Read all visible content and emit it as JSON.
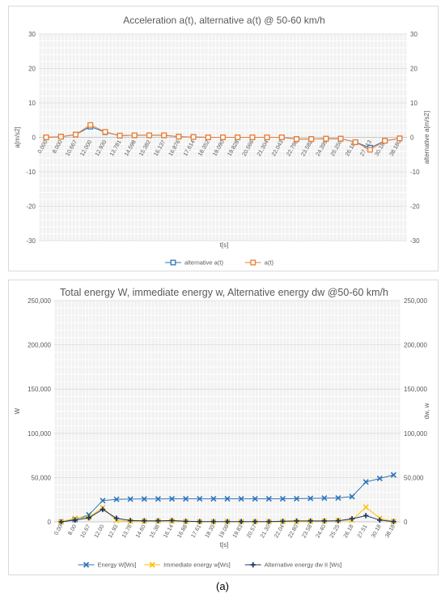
{
  "figure": {
    "caption": "(a)"
  },
  "chart_data": [
    {
      "type": "line",
      "title": "Acceleration a(t), alternative  a(t) @ 50-60 km/h",
      "xlabel": "t[s]",
      "ylabel": "a[m/s2]",
      "y2label": "alternative a[m/s2]",
      "ylim": [
        -30,
        30
      ],
      "y2lim": [
        -30,
        30
      ],
      "yticks": [
        -30,
        -20,
        -10,
        0,
        10,
        20,
        30
      ],
      "grid": true,
      "legend_position": "bottom",
      "categories": [
        "0.000",
        "8.000",
        "10.667",
        "12.000",
        "12.930",
        "13.781",
        "14.598",
        "15.382",
        "16.137",
        "16.876",
        "17.614",
        "18.352",
        "19.090",
        "19.828",
        "20.566",
        "21.304",
        "22.043",
        "22.798",
        "23.582",
        "24.399",
        "25.250",
        "26.180",
        "27.513",
        "30.180",
        "38.180"
      ],
      "series": [
        {
          "name": "alternative a(t)",
          "color": "#2e75b6",
          "marker": "square",
          "values": [
            0,
            0.2,
            0.8,
            3.1,
            1.5,
            0.5,
            0.6,
            0.6,
            0.6,
            0.2,
            0.1,
            0,
            0,
            0,
            0,
            0,
            0,
            -0.5,
            -0.5,
            -0.4,
            -0.4,
            -1.4,
            -3.0,
            -1.0,
            -0.3
          ]
        },
        {
          "name": "a(t)",
          "color": "#ed7d31",
          "marker": "square",
          "values": [
            0,
            0.2,
            0.8,
            3.6,
            1.6,
            0.5,
            0.6,
            0.6,
            0.6,
            0.2,
            0.1,
            0,
            0,
            0,
            0,
            0,
            0,
            -0.5,
            -0.5,
            -0.4,
            -0.4,
            -1.4,
            -3.6,
            -1.0,
            -0.3
          ]
        }
      ]
    },
    {
      "type": "line",
      "title": "Total energy W, immediate energy w, Alternative energy dw @50-60 km/h",
      "xlabel": "t[s]",
      "ylabel": "W",
      "y2label": "dw, w",
      "ylim": [
        0,
        250000
      ],
      "y2lim": [
        0,
        250000
      ],
      "yticks": [
        "0",
        "50,000",
        "100,000",
        "150,000",
        "200,000",
        "250,000"
      ],
      "grid": true,
      "legend_position": "bottom",
      "categories": [
        "0.00",
        "8.00",
        "10.67",
        "12.00",
        "12.93",
        "13.78",
        "14.60",
        "15.38",
        "16.14",
        "16.88",
        "17.61",
        "18.35",
        "19.09",
        "19.83",
        "20.57",
        "21.30",
        "22.04",
        "22.80",
        "23.58",
        "24.40",
        "25.25",
        "26.18",
        "27.51",
        "30.18",
        "38.18"
      ],
      "series": [
        {
          "name": "Energy W[Ws]",
          "color": "#2e75b6",
          "marker": "x",
          "values": [
            0,
            2500,
            8000,
            24000,
            25500,
            25700,
            25800,
            25900,
            26000,
            26000,
            26000,
            26000,
            26000,
            26000,
            26000,
            26000,
            26000,
            26200,
            26500,
            26800,
            27000,
            28500,
            45000,
            49000,
            53000
          ]
        },
        {
          "name": "Immediate energy w[Ws]",
          "color": "#ffc000",
          "marker": "x",
          "values": [
            0,
            4000,
            5000,
            16000,
            1500,
            500,
            800,
            800,
            800,
            300,
            200,
            100,
            100,
            100,
            100,
            100,
            100,
            100,
            500,
            800,
            1500,
            2000,
            16500,
            4000,
            400
          ]
        },
        {
          "name": "Alternative energy dw II [Ws]",
          "color": "#1f3864",
          "marker": "plus",
          "values": [
            0,
            2000,
            4500,
            14000,
            4000,
            1500,
            1200,
            1200,
            1500,
            600,
            300,
            300,
            300,
            300,
            300,
            300,
            600,
            1000,
            1000,
            1000,
            1200,
            3500,
            7000,
            2000,
            300
          ]
        }
      ]
    }
  ]
}
